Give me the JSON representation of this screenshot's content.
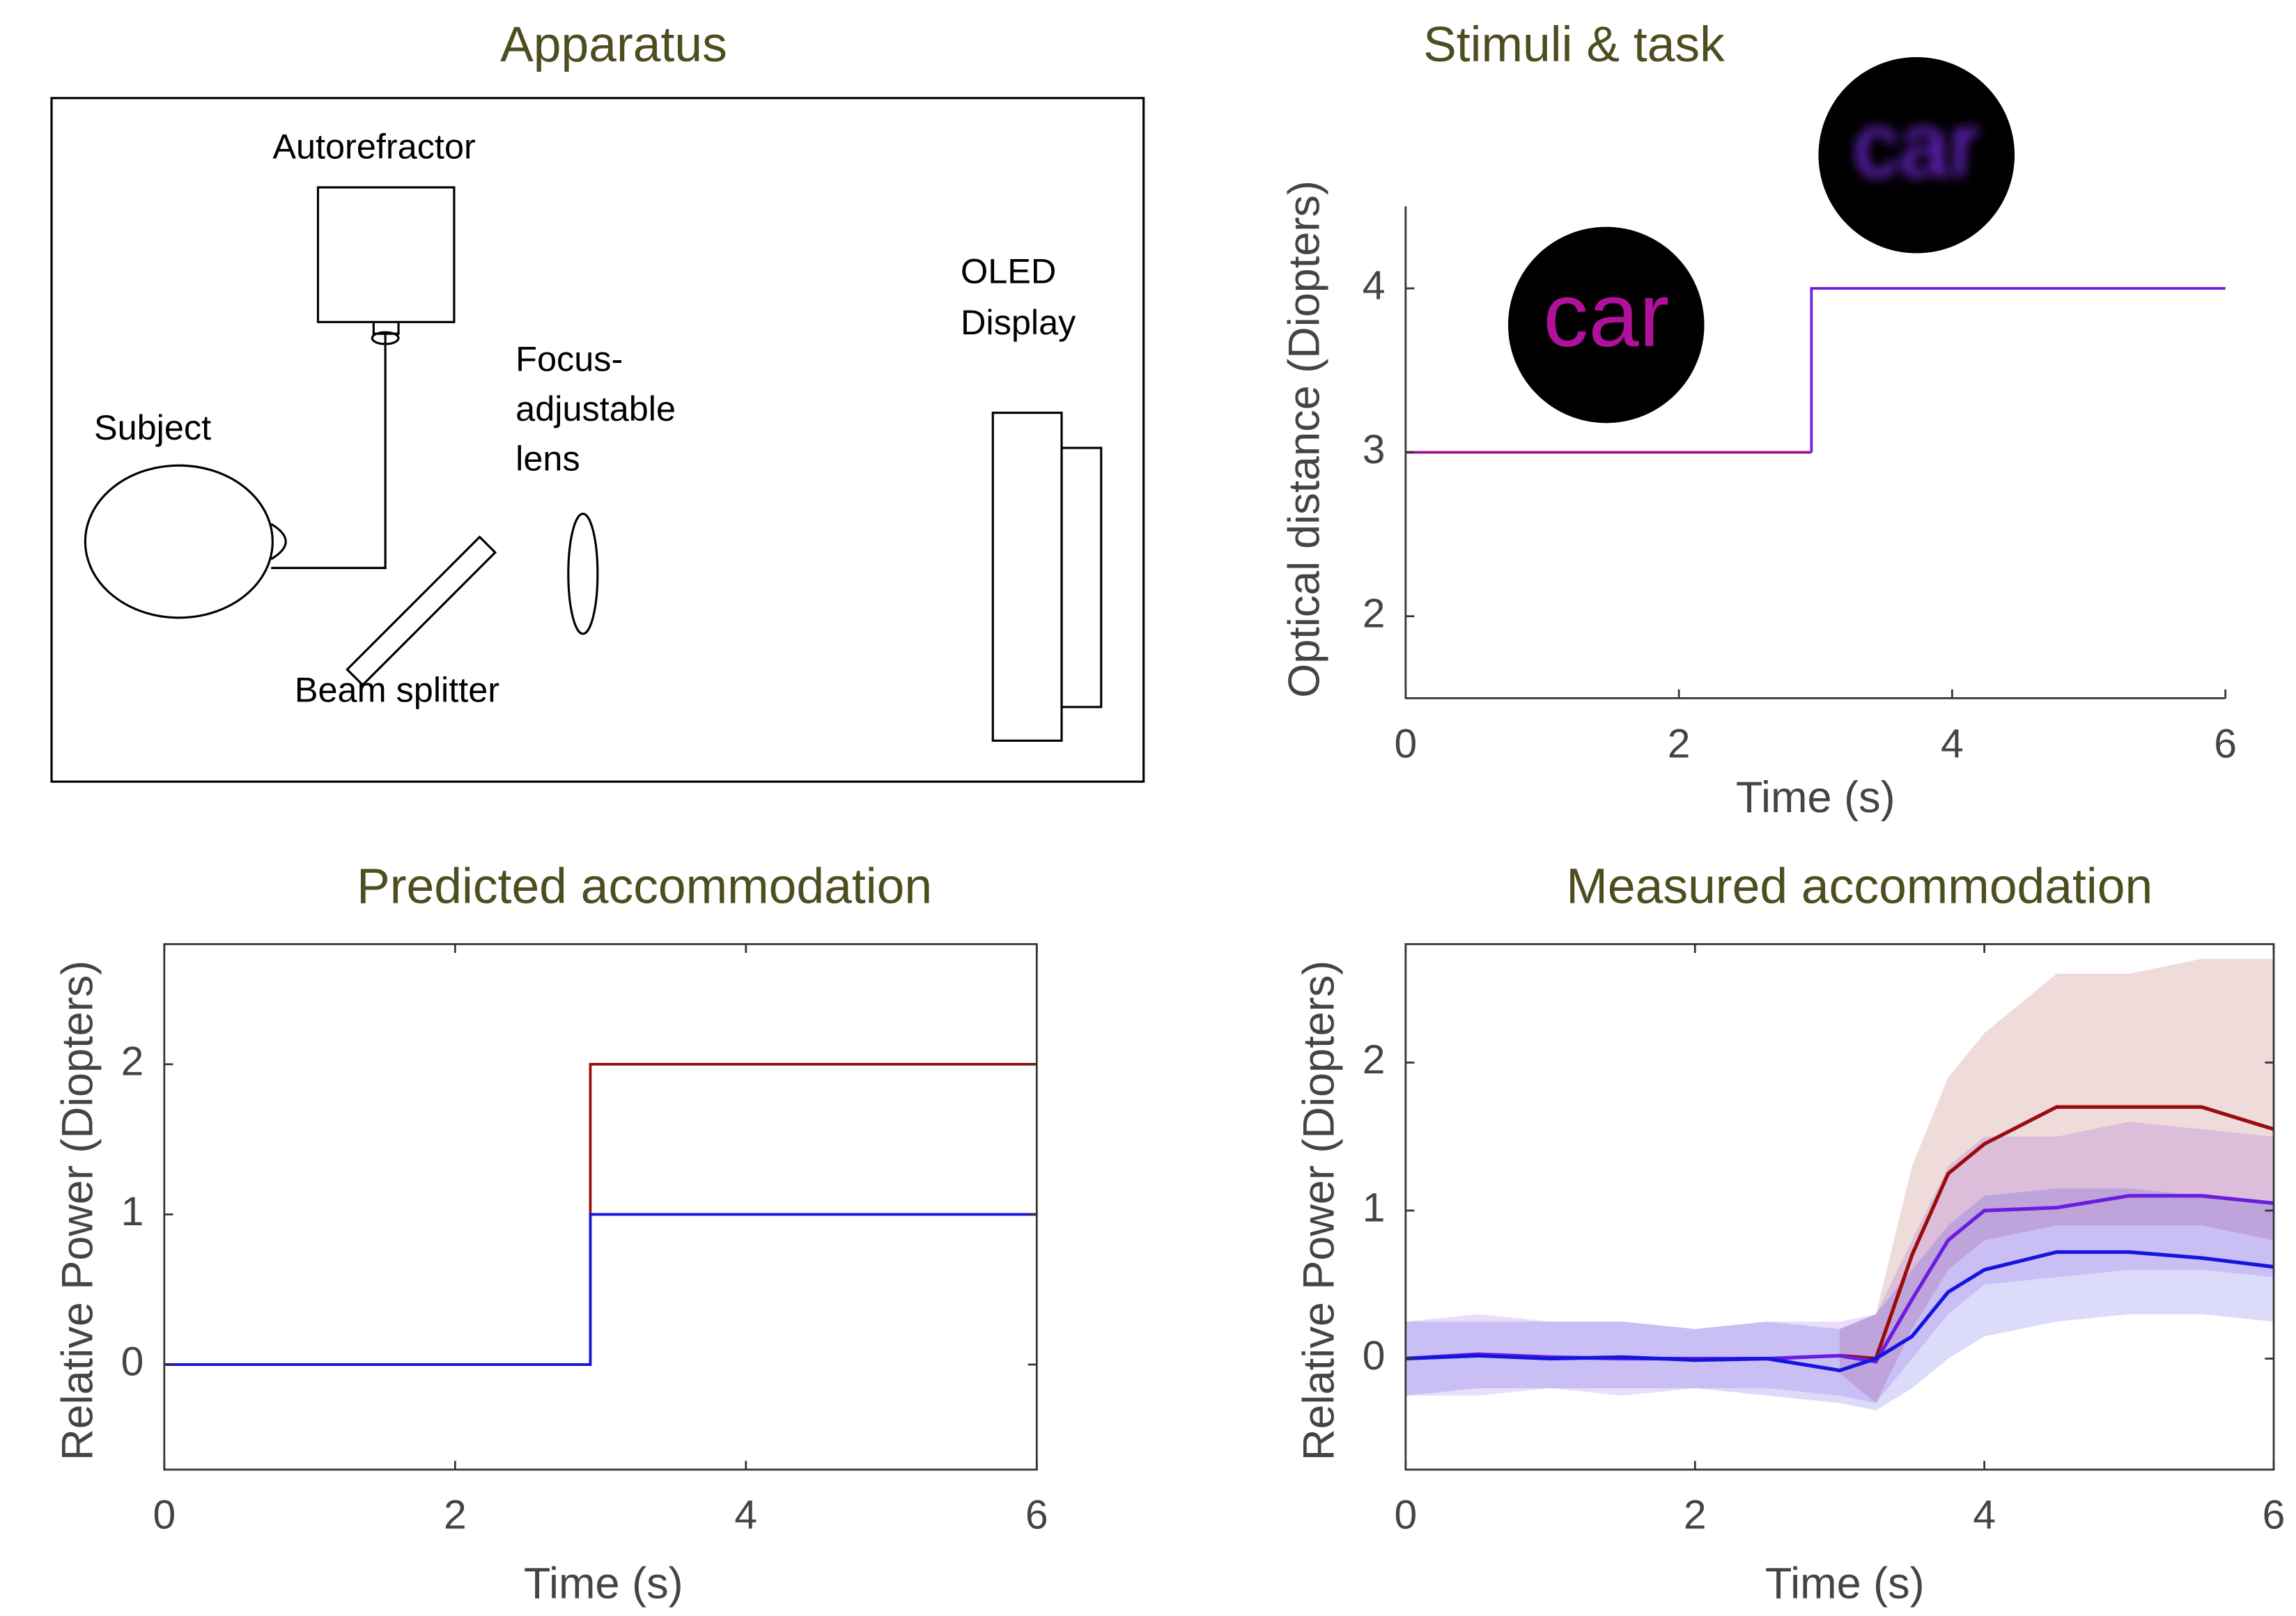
{
  "diagram": {
    "title": "Apparatus",
    "labels": {
      "autorefractor": "Autorefractor",
      "subject": "Subject",
      "lens": [
        "Focus-",
        "adjustable",
        "lens"
      ],
      "display": [
        "OLED",
        "Display"
      ],
      "beam_splitter": "Beam splitter"
    }
  },
  "chart_data": [
    {
      "type": "line",
      "title": "Stimuli & task",
      "xlabel": "Time (s)",
      "ylabel": "Optical distance (Diopters)",
      "annotations": [
        "car",
        "car"
      ],
      "xlim": [
        0,
        6
      ],
      "ylim": [
        1.5,
        4.5
      ],
      "xticks": [
        0,
        2,
        4,
        6
      ],
      "yticks": [
        2,
        3,
        4
      ],
      "frame": false,
      "series": [
        {
          "color": "#a0108f",
          "x": [
            0,
            2.97
          ],
          "values": [
            3,
            3
          ]
        },
        {
          "color": "#7020d0",
          "x": [
            2.97,
            2.97,
            6
          ],
          "values": [
            3,
            4,
            4
          ]
        }
      ]
    },
    {
      "type": "line",
      "title": "Predicted accommodation",
      "xlabel": "Time (s)",
      "ylabel": "Relative Power (Diopters)",
      "xlim": [
        0,
        6
      ],
      "ylim": [
        -0.7,
        2.8
      ],
      "xticks": [
        0,
        2,
        4,
        6
      ],
      "yticks": [
        0,
        1,
        2
      ],
      "frame": true,
      "series": [
        {
          "color": "#9b0b0b",
          "x": [
            0,
            2.93,
            2.93,
            6
          ],
          "values": [
            0,
            0,
            2,
            2
          ]
        },
        {
          "color": "#1515e0",
          "x": [
            0,
            2.93,
            2.93,
            6
          ],
          "values": [
            0,
            0,
            1,
            1
          ]
        }
      ]
    },
    {
      "type": "band-line",
      "title": "Measured accommodation",
      "xlabel": "Time (s)",
      "ylabel": "Relative Power (Diopters)",
      "xlim": [
        0,
        6
      ],
      "ylim": [
        -0.75,
        2.8
      ],
      "xticks": [
        0,
        2,
        4,
        6
      ],
      "yticks": [
        0,
        1,
        2
      ],
      "frame": true,
      "x": [
        0,
        0.5,
        1,
        1.5,
        2,
        2.5,
        3,
        3.25,
        3.5,
        3.75,
        4,
        4.5,
        5,
        5.5,
        6
      ],
      "series": [
        {
          "color": "#9b0b0b",
          "values": [
            null,
            null,
            null,
            null,
            null,
            null,
            0.02,
            0,
            0.7,
            1.25,
            1.45,
            1.7,
            1.7,
            1.7,
            1.55
          ],
          "lower": [
            null,
            null,
            null,
            null,
            null,
            null,
            -0.1,
            -0.3,
            0.2,
            0.6,
            0.8,
            0.9,
            0.9,
            0.9,
            0.8
          ],
          "upper": [
            null,
            null,
            null,
            null,
            null,
            null,
            0.2,
            0.3,
            1.3,
            1.9,
            2.2,
            2.6,
            2.6,
            2.7,
            2.7
          ]
        },
        {
          "color": "#6a1de0",
          "values": [
            0,
            0.03,
            0.01,
            0,
            0,
            0,
            0.02,
            -0.02,
            0.4,
            0.8,
            1.0,
            1.02,
            1.1,
            1.1,
            1.05
          ],
          "lower": [
            -0.25,
            -0.25,
            -0.2,
            -0.25,
            -0.2,
            -0.2,
            -0.25,
            -0.3,
            0,
            0.3,
            0.5,
            0.55,
            0.6,
            0.6,
            0.55
          ],
          "upper": [
            0.25,
            0.3,
            0.25,
            0.25,
            0.2,
            0.25,
            0.25,
            0.3,
            0.8,
            1.3,
            1.5,
            1.5,
            1.6,
            1.55,
            1.5
          ]
        },
        {
          "color": "#1515e0",
          "values": [
            0,
            0.02,
            0,
            0.01,
            -0.01,
            0,
            -0.08,
            0,
            0.15,
            0.45,
            0.6,
            0.72,
            0.72,
            0.68,
            0.62
          ],
          "lower": [
            -0.25,
            -0.2,
            -0.2,
            -0.2,
            -0.2,
            -0.25,
            -0.3,
            -0.35,
            -0.2,
            0,
            0.15,
            0.25,
            0.3,
            0.3,
            0.25
          ],
          "upper": [
            0.25,
            0.25,
            0.25,
            0.25,
            0.2,
            0.25,
            0.2,
            0.3,
            0.6,
            0.9,
            1.1,
            1.15,
            1.15,
            1.1,
            1.05
          ]
        }
      ]
    }
  ]
}
